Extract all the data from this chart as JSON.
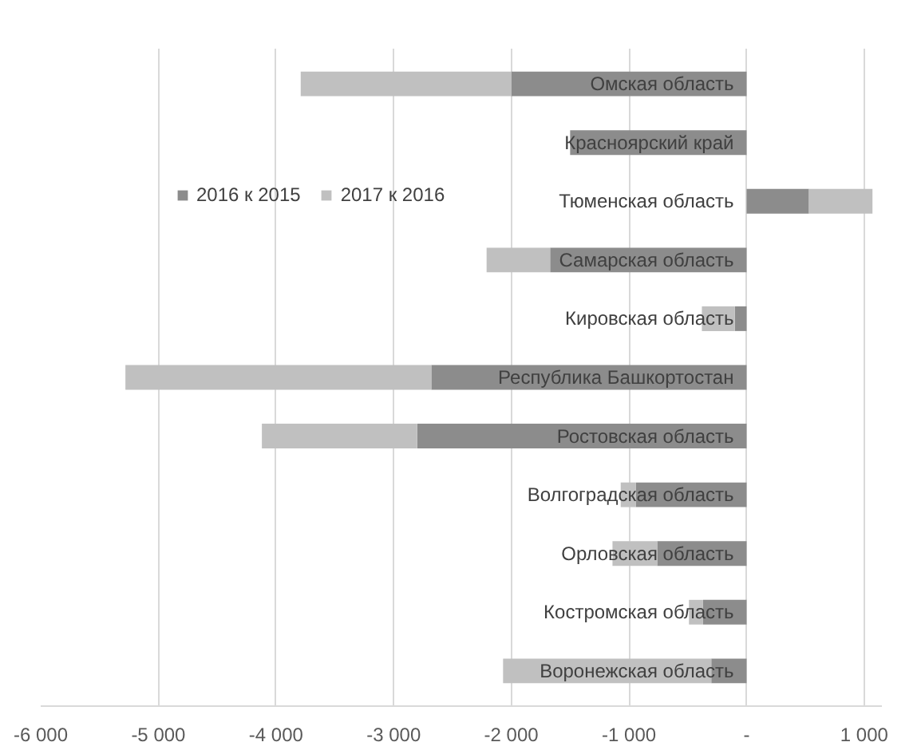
{
  "chart_data": {
    "type": "bar",
    "orientation": "horizontal",
    "stacked": true,
    "categories": [
      "Омская область",
      "Красноярский край",
      "Тюменская область",
      "Самарская область",
      "Кировская область",
      "Республика Башкортостан",
      "Ростовская область",
      "Волгоградская область",
      "Орловская область",
      "Костромская область",
      "Воронежская область"
    ],
    "series": [
      {
        "name": "2016 к 2015",
        "color": "#8c8c8c",
        "values": [
          -2000,
          -1500,
          530,
          -1670,
          -100,
          -2680,
          -2800,
          -940,
          -760,
          -370,
          -300
        ]
      },
      {
        "name": "2017 к 2016",
        "color": "#c0c0c0",
        "values": [
          -1790,
          0,
          540,
          -540,
          -280,
          -2600,
          -1320,
          -130,
          -380,
          -120,
          -1770
        ]
      }
    ],
    "xlim": [
      -6000,
      1150
    ],
    "xticks": [
      {
        "value": -6000,
        "label": "-6 000"
      },
      {
        "value": -5000,
        "label": "-5 000"
      },
      {
        "value": -4000,
        "label": "-4 000"
      },
      {
        "value": -3000,
        "label": "-3 000"
      },
      {
        "value": -2000,
        "label": "-2 000"
      },
      {
        "value": -1000,
        "label": "-1 000"
      },
      {
        "value": 0,
        "label": "-"
      },
      {
        "value": 1000,
        "label": "1 000"
      }
    ],
    "grid": "x",
    "legend": "left"
  }
}
